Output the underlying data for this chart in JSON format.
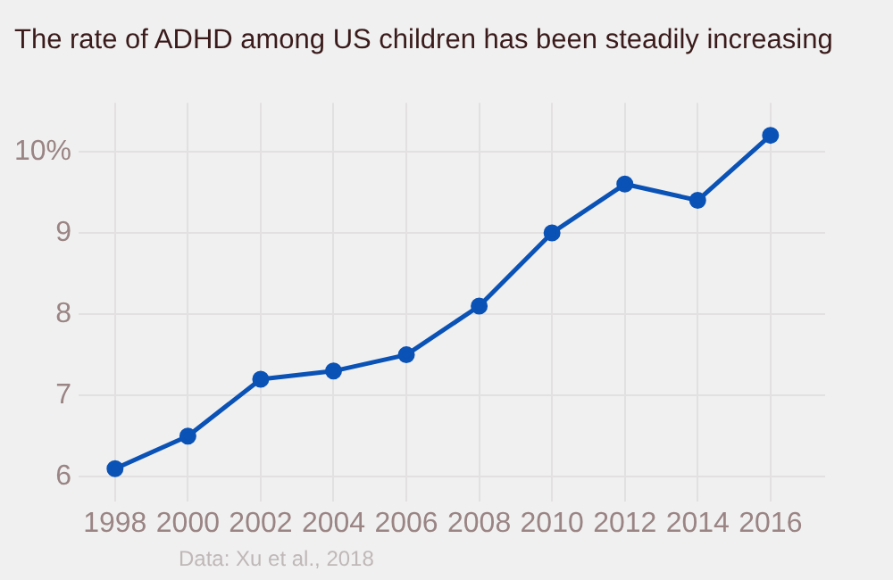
{
  "chart_data": {
    "type": "line",
    "title": "The rate of ADHD among US children has been steadily increasing",
    "x": [
      1998,
      2000,
      2002,
      2004,
      2006,
      2008,
      2010,
      2012,
      2014,
      2016
    ],
    "series": [
      {
        "color": "#0a52b5",
        "values": [
          6.1,
          6.5,
          7.2,
          7.3,
          7.5,
          8.1,
          9.0,
          9.6,
          9.4,
          10.2
        ]
      }
    ],
    "xlim": [
      1997,
      2017.5
    ],
    "xticks": [
      1998,
      2000,
      2002,
      2004,
      2006,
      2008,
      2010,
      2012,
      2014,
      2016
    ],
    "ylim": [
      5.7,
      10.6
    ],
    "yticks": [
      6,
      7,
      8,
      9,
      {
        "value": 10,
        "label": "10%"
      }
    ],
    "grid": true,
    "marker": "circle",
    "line_style": "solid",
    "annotations": [
      "Data: Xu et al., 2018"
    ]
  }
}
